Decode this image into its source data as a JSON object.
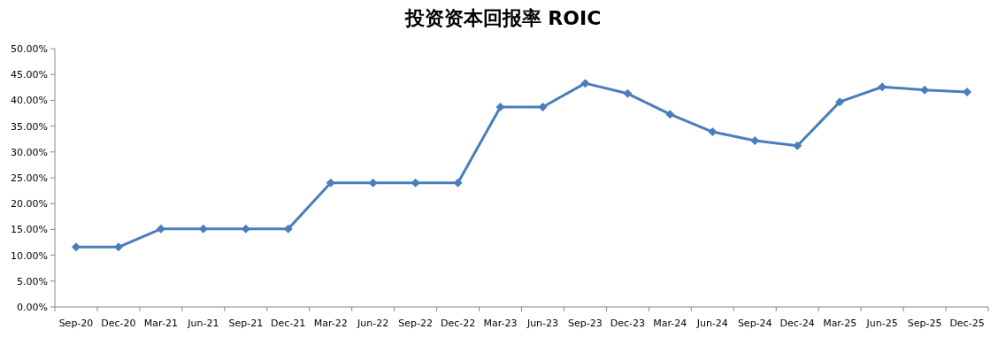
{
  "chart_data": {
    "type": "line",
    "title": "投资资本回报率 ROIC",
    "categories": [
      "Sep-20",
      "Dec-20",
      "Mar-21",
      "Jun-21",
      "Sep-21",
      "Dec-21",
      "Mar-22",
      "Jun-22",
      "Sep-22",
      "Dec-22",
      "Mar-23",
      "Jun-23",
      "Sep-23",
      "Dec-23",
      "Mar-24",
      "Jun-24",
      "Sep-24",
      "Dec-24",
      "Mar-25",
      "Jun-25",
      "Sep-25",
      "Dec-25"
    ],
    "series": [
      {
        "color": "#4a7ebb",
        "values": [
          11.6,
          11.6,
          15.1,
          15.1,
          15.1,
          15.1,
          24.0,
          24.0,
          24.0,
          24.0,
          38.7,
          38.7,
          43.3,
          41.3,
          37.3,
          33.9,
          32.2,
          31.2,
          39.7,
          42.6,
          42.0,
          41.6
        ]
      }
    ],
    "ylim": [
      0,
      50
    ],
    "yticks": [
      {
        "value": 0,
        "label": "0.00%"
      },
      {
        "value": 5,
        "label": "5.00%"
      },
      {
        "value": 10,
        "label": "10.00%"
      },
      {
        "value": 15,
        "label": "15.00%"
      },
      {
        "value": 20,
        "label": "20.00%"
      },
      {
        "value": 25,
        "label": "25.00%"
      },
      {
        "value": 30,
        "label": "30.00%"
      },
      {
        "value": 35,
        "label": "35.00%"
      },
      {
        "value": 40,
        "label": "40.00%"
      },
      {
        "value": 45,
        "label": "45.00%"
      },
      {
        "value": 50,
        "label": "50.00%"
      }
    ],
    "grid": false,
    "marker": "diamond",
    "line_style": "solid"
  }
}
